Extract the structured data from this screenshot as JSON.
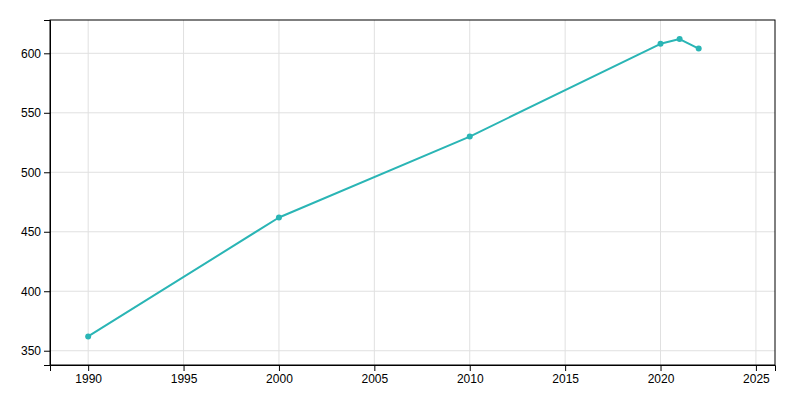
{
  "chart_data": {
    "type": "line",
    "x": [
      1990,
      2000,
      2010,
      2020,
      2021,
      2022
    ],
    "values": [
      362,
      462,
      530,
      608,
      612,
      604
    ],
    "color": "#2ab5b5",
    "marker": "circle",
    "xlim": [
      1988,
      2026
    ],
    "ylim": [
      338,
      628
    ],
    "xticks": [
      1990,
      1995,
      2000,
      2005,
      2010,
      2015,
      2020,
      2025
    ],
    "yticks": [
      350,
      400,
      450,
      500,
      550,
      600
    ],
    "grid": true
  }
}
